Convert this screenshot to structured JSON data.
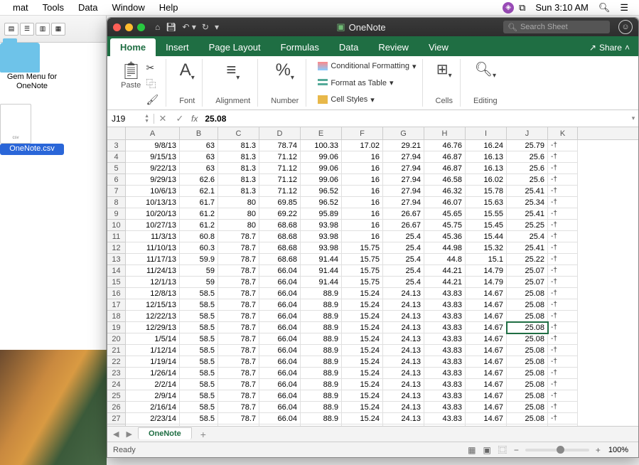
{
  "menubar": {
    "items": [
      "mat",
      "Tools",
      "Data",
      "Window",
      "Help"
    ],
    "clock": "Sun 3:10 AM"
  },
  "finder": {
    "folder_label": "Gem Menu for OneNote",
    "file_label": "OneNote.csv",
    "file_badge": "csv"
  },
  "excel": {
    "title": "OneNote",
    "search_placeholder": "Search Sheet",
    "tabs": [
      "Home",
      "Insert",
      "Page Layout",
      "Formulas",
      "Data",
      "Review",
      "View"
    ],
    "share_label": "Share",
    "ribbon": {
      "paste": "Paste",
      "font": "Font",
      "alignment": "Alignment",
      "number": "Number",
      "cond_fmt": "Conditional Formatting",
      "fmt_table": "Format as Table",
      "cell_styles": "Cell Styles",
      "cells": "Cells",
      "editing": "Editing"
    },
    "name_box": "J19",
    "formula_value": "25.08",
    "col_widths": {
      "A": 76,
      "B": 54,
      "C": 58,
      "D": 58,
      "E": 58,
      "F": 58,
      "G": 58,
      "H": 58,
      "I": 58,
      "J": 58,
      "K": 42
    },
    "columns": [
      "A",
      "B",
      "C",
      "D",
      "E",
      "F",
      "G",
      "H",
      "I",
      "J",
      "K"
    ],
    "selected": {
      "row": 19,
      "col": "J"
    },
    "k_suffix": "-†",
    "rows": [
      {
        "n": 3,
        "A": "9/8/13",
        "B": "63",
        "C": "81.3",
        "D": "78.74",
        "E": "100.33",
        "F": "17.02",
        "G": "29.21",
        "H": "46.76",
        "I": "16.24",
        "J": "25.79"
      },
      {
        "n": 4,
        "A": "9/15/13",
        "B": "63",
        "C": "81.3",
        "D": "71.12",
        "E": "99.06",
        "F": "16",
        "G": "27.94",
        "H": "46.87",
        "I": "16.13",
        "J": "25.6"
      },
      {
        "n": 5,
        "A": "9/22/13",
        "B": "63",
        "C": "81.3",
        "D": "71.12",
        "E": "99.06",
        "F": "16",
        "G": "27.94",
        "H": "46.87",
        "I": "16.13",
        "J": "25.6"
      },
      {
        "n": 6,
        "A": "9/29/13",
        "B": "62.6",
        "C": "81.3",
        "D": "71.12",
        "E": "99.06",
        "F": "16",
        "G": "27.94",
        "H": "46.58",
        "I": "16.02",
        "J": "25.6"
      },
      {
        "n": 7,
        "A": "10/6/13",
        "B": "62.1",
        "C": "81.3",
        "D": "71.12",
        "E": "96.52",
        "F": "16",
        "G": "27.94",
        "H": "46.32",
        "I": "15.78",
        "J": "25.41"
      },
      {
        "n": 8,
        "A": "10/13/13",
        "B": "61.7",
        "C": "80",
        "D": "69.85",
        "E": "96.52",
        "F": "16",
        "G": "27.94",
        "H": "46.07",
        "I": "15.63",
        "J": "25.34"
      },
      {
        "n": 9,
        "A": "10/20/13",
        "B": "61.2",
        "C": "80",
        "D": "69.22",
        "E": "95.89",
        "F": "16",
        "G": "26.67",
        "H": "45.65",
        "I": "15.55",
        "J": "25.41"
      },
      {
        "n": 10,
        "A": "10/27/13",
        "B": "61.2",
        "C": "80",
        "D": "68.68",
        "E": "93.98",
        "F": "16",
        "G": "26.67",
        "H": "45.75",
        "I": "15.45",
        "J": "25.25"
      },
      {
        "n": 11,
        "A": "11/3/13",
        "B": "60.8",
        "C": "78.7",
        "D": "68.68",
        "E": "93.98",
        "F": "16",
        "G": "25.4",
        "H": "45.36",
        "I": "15.44",
        "J": "25.4"
      },
      {
        "n": 12,
        "A": "11/10/13",
        "B": "60.3",
        "C": "78.7",
        "D": "68.68",
        "E": "93.98",
        "F": "15.75",
        "G": "25.4",
        "H": "44.98",
        "I": "15.32",
        "J": "25.41"
      },
      {
        "n": 13,
        "A": "11/17/13",
        "B": "59.9",
        "C": "78.7",
        "D": "68.68",
        "E": "91.44",
        "F": "15.75",
        "G": "25.4",
        "H": "44.8",
        "I": "15.1",
        "J": "25.22"
      },
      {
        "n": 14,
        "A": "11/24/13",
        "B": "59",
        "C": "78.7",
        "D": "66.04",
        "E": "91.44",
        "F": "15.75",
        "G": "25.4",
        "H": "44.21",
        "I": "14.79",
        "J": "25.07"
      },
      {
        "n": 15,
        "A": "12/1/13",
        "B": "59",
        "C": "78.7",
        "D": "66.04",
        "E": "91.44",
        "F": "15.75",
        "G": "25.4",
        "H": "44.21",
        "I": "14.79",
        "J": "25.07"
      },
      {
        "n": 16,
        "A": "12/8/13",
        "B": "58.5",
        "C": "78.7",
        "D": "66.04",
        "E": "88.9",
        "F": "15.24",
        "G": "24.13",
        "H": "43.83",
        "I": "14.67",
        "J": "25.08"
      },
      {
        "n": 17,
        "A": "12/15/13",
        "B": "58.5",
        "C": "78.7",
        "D": "66.04",
        "E": "88.9",
        "F": "15.24",
        "G": "24.13",
        "H": "43.83",
        "I": "14.67",
        "J": "25.08"
      },
      {
        "n": 18,
        "A": "12/22/13",
        "B": "58.5",
        "C": "78.7",
        "D": "66.04",
        "E": "88.9",
        "F": "15.24",
        "G": "24.13",
        "H": "43.83",
        "I": "14.67",
        "J": "25.08"
      },
      {
        "n": 19,
        "A": "12/29/13",
        "B": "58.5",
        "C": "78.7",
        "D": "66.04",
        "E": "88.9",
        "F": "15.24",
        "G": "24.13",
        "H": "43.83",
        "I": "14.67",
        "J": "25.08"
      },
      {
        "n": 20,
        "A": "1/5/14",
        "B": "58.5",
        "C": "78.7",
        "D": "66.04",
        "E": "88.9",
        "F": "15.24",
        "G": "24.13",
        "H": "43.83",
        "I": "14.67",
        "J": "25.08"
      },
      {
        "n": 21,
        "A": "1/12/14",
        "B": "58.5",
        "C": "78.7",
        "D": "66.04",
        "E": "88.9",
        "F": "15.24",
        "G": "24.13",
        "H": "43.83",
        "I": "14.67",
        "J": "25.08"
      },
      {
        "n": 22,
        "A": "1/19/14",
        "B": "58.5",
        "C": "78.7",
        "D": "66.04",
        "E": "88.9",
        "F": "15.24",
        "G": "24.13",
        "H": "43.83",
        "I": "14.67",
        "J": "25.08"
      },
      {
        "n": 23,
        "A": "1/26/14",
        "B": "58.5",
        "C": "78.7",
        "D": "66.04",
        "E": "88.9",
        "F": "15.24",
        "G": "24.13",
        "H": "43.83",
        "I": "14.67",
        "J": "25.08"
      },
      {
        "n": 24,
        "A": "2/2/14",
        "B": "58.5",
        "C": "78.7",
        "D": "66.04",
        "E": "88.9",
        "F": "15.24",
        "G": "24.13",
        "H": "43.83",
        "I": "14.67",
        "J": "25.08"
      },
      {
        "n": 25,
        "A": "2/9/14",
        "B": "58.5",
        "C": "78.7",
        "D": "66.04",
        "E": "88.9",
        "F": "15.24",
        "G": "24.13",
        "H": "43.83",
        "I": "14.67",
        "J": "25.08"
      },
      {
        "n": 26,
        "A": "2/16/14",
        "B": "58.5",
        "C": "78.7",
        "D": "66.04",
        "E": "88.9",
        "F": "15.24",
        "G": "24.13",
        "H": "43.83",
        "I": "14.67",
        "J": "25.08"
      },
      {
        "n": 27,
        "A": "2/23/14",
        "B": "58.5",
        "C": "78.7",
        "D": "66.04",
        "E": "88.9",
        "F": "15.24",
        "G": "24.13",
        "H": "43.83",
        "I": "14.67",
        "J": "25.08"
      },
      {
        "n": 28,
        "A": "",
        "B": "",
        "C": "",
        "D": "",
        "E": "",
        "F": "",
        "G": "",
        "H": "",
        "I": "",
        "J": ""
      }
    ],
    "sheet_name": "OneNote",
    "status_text": "Ready",
    "zoom": "100%"
  },
  "colors": {
    "excel_green": "#1f6e43",
    "titlebar": "#333333",
    "selection": "#1f6e43"
  }
}
